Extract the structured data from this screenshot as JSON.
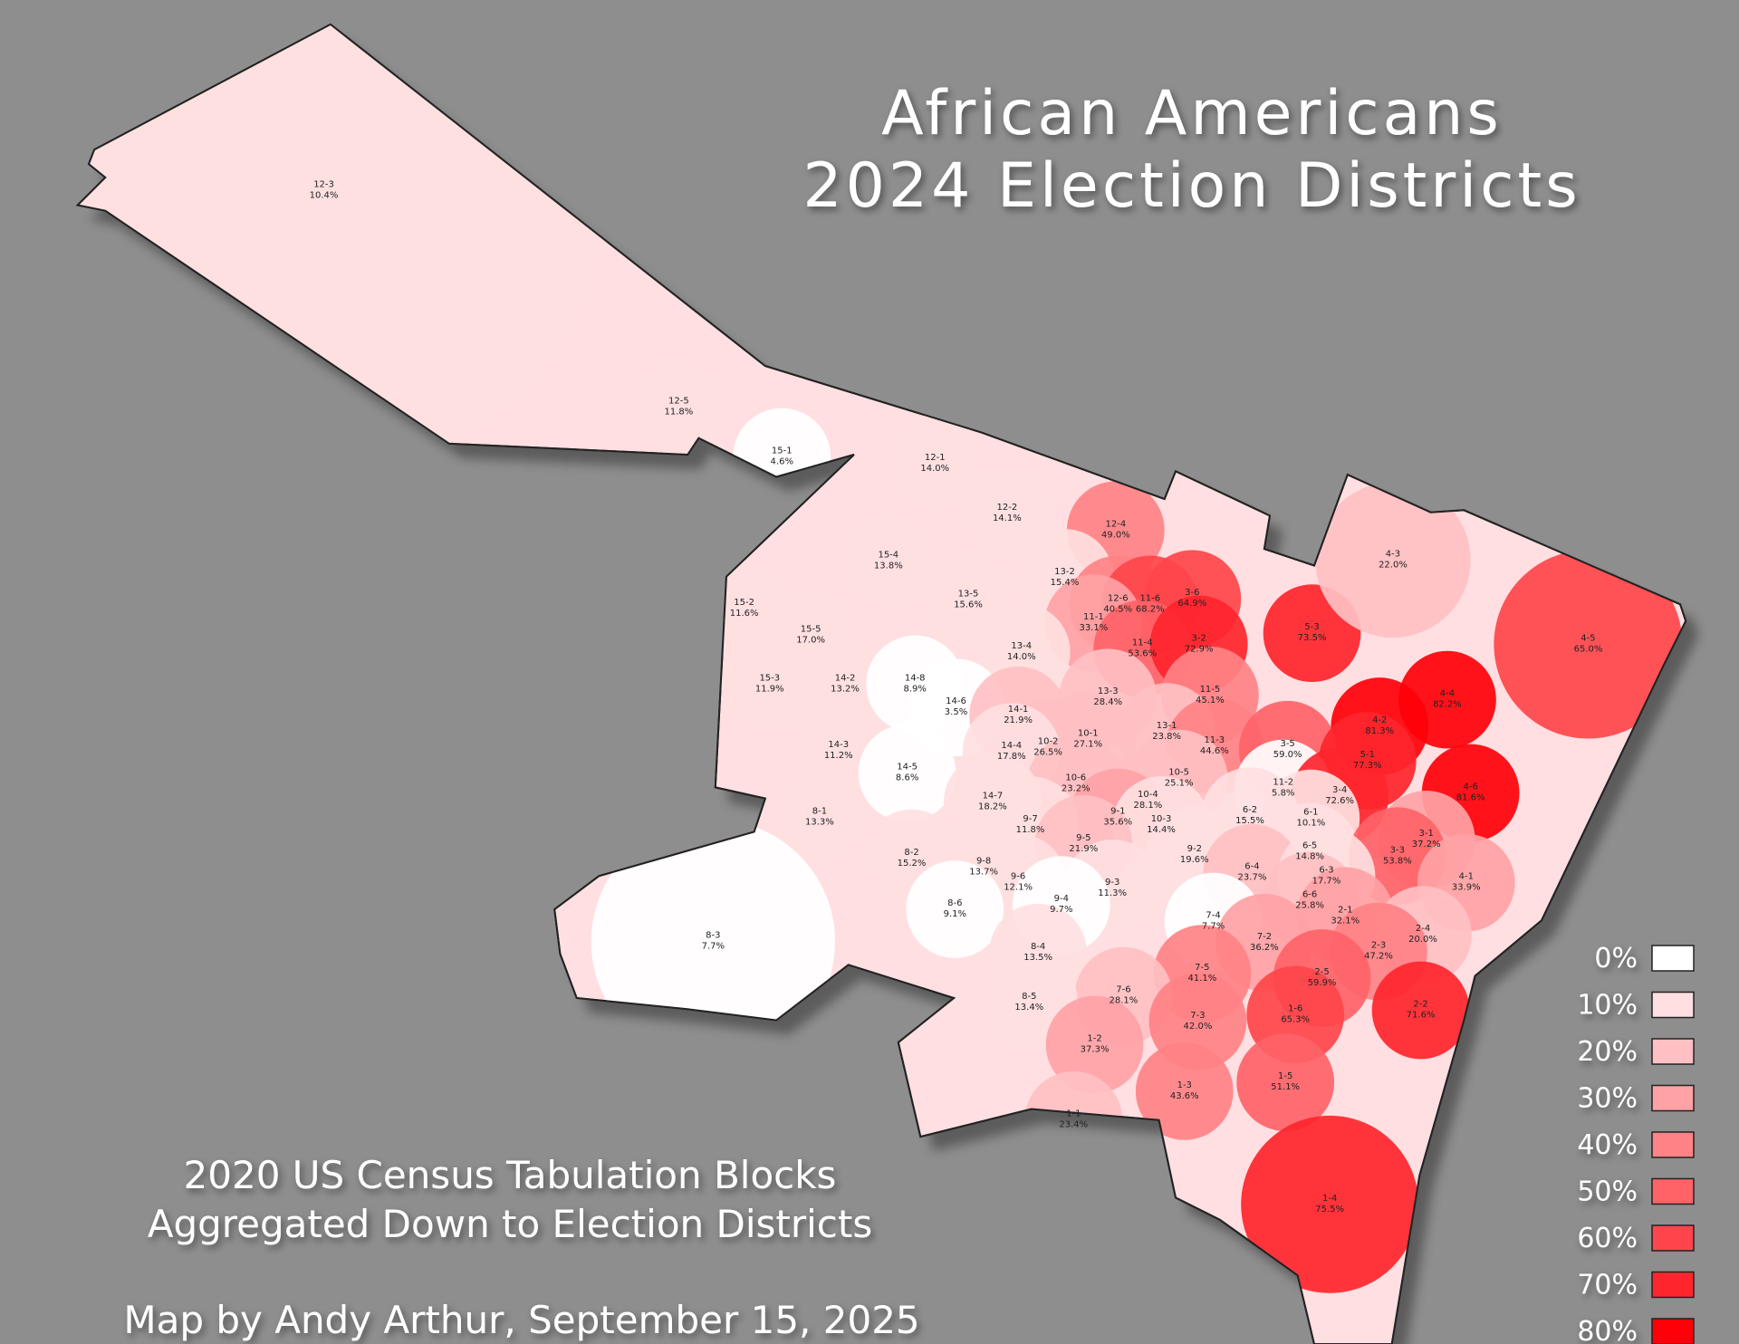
{
  "title": {
    "line1": "African Americans",
    "line2": "2024 Election Districts"
  },
  "notes": {
    "line1": "2020 US Census Tabulation Blocks",
    "line2": "Aggregated Down to Election Districts"
  },
  "credit": "Map by Andy Arthur, September 15, 2025",
  "legend": [
    {
      "label": "0%",
      "color": "#ffffff"
    },
    {
      "label": "10%",
      "color": "#ffdfe1"
    },
    {
      "label": "20%",
      "color": "#ffc0c3"
    },
    {
      "label": "30%",
      "color": "#ffa2a5"
    },
    {
      "label": "40%",
      "color": "#ff8286"
    },
    {
      "label": "50%",
      "color": "#ff6368"
    },
    {
      "label": "60%",
      "color": "#ff454b"
    },
    {
      "label": "70%",
      "color": "#ff252c"
    },
    {
      "label": "80%",
      "color": "#ff0008"
    }
  ],
  "districts": [
    {
      "name": "12-3",
      "share": "10.4%"
    },
    {
      "name": "12-5",
      "share": "11.8%"
    },
    {
      "name": "15-1",
      "share": "4.6%"
    },
    {
      "name": "12-1",
      "share": "14.0%"
    },
    {
      "name": "12-2",
      "share": "14.1%"
    },
    {
      "name": "12-4",
      "share": "49.0%"
    },
    {
      "name": "15-4",
      "share": "13.8%"
    },
    {
      "name": "13-2",
      "share": "15.4%"
    },
    {
      "name": "13-5",
      "share": "15.6%"
    },
    {
      "name": "15-2",
      "share": "11.6%"
    },
    {
      "name": "12-6",
      "share": "40.5%"
    },
    {
      "name": "11-6",
      "share": "68.2%"
    },
    {
      "name": "3-6",
      "share": "64.9%"
    },
    {
      "name": "11-1",
      "share": "33.1%"
    },
    {
      "name": "5-3",
      "share": "73.5%"
    },
    {
      "name": "4-3",
      "share": "22.0%"
    },
    {
      "name": "15-5",
      "share": "17.0%"
    },
    {
      "name": "11-4",
      "share": "53.6%"
    },
    {
      "name": "3-2",
      "share": "72.9%"
    },
    {
      "name": "4-5",
      "share": "65.0%"
    },
    {
      "name": "13-4",
      "share": "14.0%"
    },
    {
      "name": "15-3",
      "share": "11.9%"
    },
    {
      "name": "14-2",
      "share": "13.2%"
    },
    {
      "name": "14-8",
      "share": "8.9%"
    },
    {
      "name": "13-3",
      "share": "28.4%"
    },
    {
      "name": "11-5",
      "share": "45.1%"
    },
    {
      "name": "4-4",
      "share": "82.2%"
    },
    {
      "name": "14-6",
      "share": "3.5%"
    },
    {
      "name": "14-1",
      "share": "21.9%"
    },
    {
      "name": "13-1",
      "share": "23.8%"
    },
    {
      "name": "4-2",
      "share": "81.3%"
    },
    {
      "name": "10-2",
      "share": "26.5%"
    },
    {
      "name": "10-1",
      "share": "27.1%"
    },
    {
      "name": "11-3",
      "share": "44.6%"
    },
    {
      "name": "3-5",
      "share": "59.0%"
    },
    {
      "name": "14-4",
      "share": "17.8%"
    },
    {
      "name": "14-3",
      "share": "11.2%"
    },
    {
      "name": "5-1",
      "share": "77.3%"
    },
    {
      "name": "14-5",
      "share": "8.6%"
    },
    {
      "name": "10-5",
      "share": "25.1%"
    },
    {
      "name": "10-6",
      "share": "23.2%"
    },
    {
      "name": "11-2",
      "share": "5.8%"
    },
    {
      "name": "3-4",
      "share": "72.6%"
    },
    {
      "name": "4-6",
      "share": "81.6%"
    },
    {
      "name": "14-7",
      "share": "18.2%"
    },
    {
      "name": "10-4",
      "share": "28.1%"
    },
    {
      "name": "6-1",
      "share": "10.1%"
    },
    {
      "name": "8-1",
      "share": "13.3%"
    },
    {
      "name": "9-1",
      "share": "35.6%"
    },
    {
      "name": "9-7",
      "share": "11.8%"
    },
    {
      "name": "10-3",
      "share": "14.4%"
    },
    {
      "name": "6-2",
      "share": "15.5%"
    },
    {
      "name": "3-1",
      "share": "37.2%"
    },
    {
      "name": "8-2",
      "share": "15.2%"
    },
    {
      "name": "9-5",
      "share": "21.9%"
    },
    {
      "name": "9-2",
      "share": "19.6%"
    },
    {
      "name": "6-5",
      "share": "14.8%"
    },
    {
      "name": "3-3",
      "share": "53.8%"
    },
    {
      "name": "9-8",
      "share": "13.7%"
    },
    {
      "name": "6-4",
      "share": "23.7%"
    },
    {
      "name": "6-3",
      "share": "17.7%"
    },
    {
      "name": "4-1",
      "share": "33.9%"
    },
    {
      "name": "9-6",
      "share": "12.1%"
    },
    {
      "name": "9-3",
      "share": "11.3%"
    },
    {
      "name": "6-6",
      "share": "25.8%"
    },
    {
      "name": "9-4",
      "share": "9.7%"
    },
    {
      "name": "2-1",
      "share": "32.1%"
    },
    {
      "name": "8-6",
      "share": "9.1%"
    },
    {
      "name": "7-4",
      "share": "7.7%"
    },
    {
      "name": "2-4",
      "share": "20.0%"
    },
    {
      "name": "8-3",
      "share": "7.7%"
    },
    {
      "name": "7-2",
      "share": "36.2%"
    },
    {
      "name": "2-3",
      "share": "47.2%"
    },
    {
      "name": "8-4",
      "share": "13.5%"
    },
    {
      "name": "7-5",
      "share": "41.1%"
    },
    {
      "name": "2-5",
      "share": "59.9%"
    },
    {
      "name": "7-6",
      "share": "28.1%"
    },
    {
      "name": "8-5",
      "share": "13.4%"
    },
    {
      "name": "1-6",
      "share": "65.3%"
    },
    {
      "name": "2-2",
      "share": "71.6%"
    },
    {
      "name": "7-3",
      "share": "42.0%"
    },
    {
      "name": "1-2",
      "share": "37.3%"
    },
    {
      "name": "1-5",
      "share": "51.1%"
    },
    {
      "name": "1-3",
      "share": "43.6%"
    },
    {
      "name": "1-1",
      "share": "23.4%"
    },
    {
      "name": "1-4",
      "share": "75.5%"
    }
  ]
}
